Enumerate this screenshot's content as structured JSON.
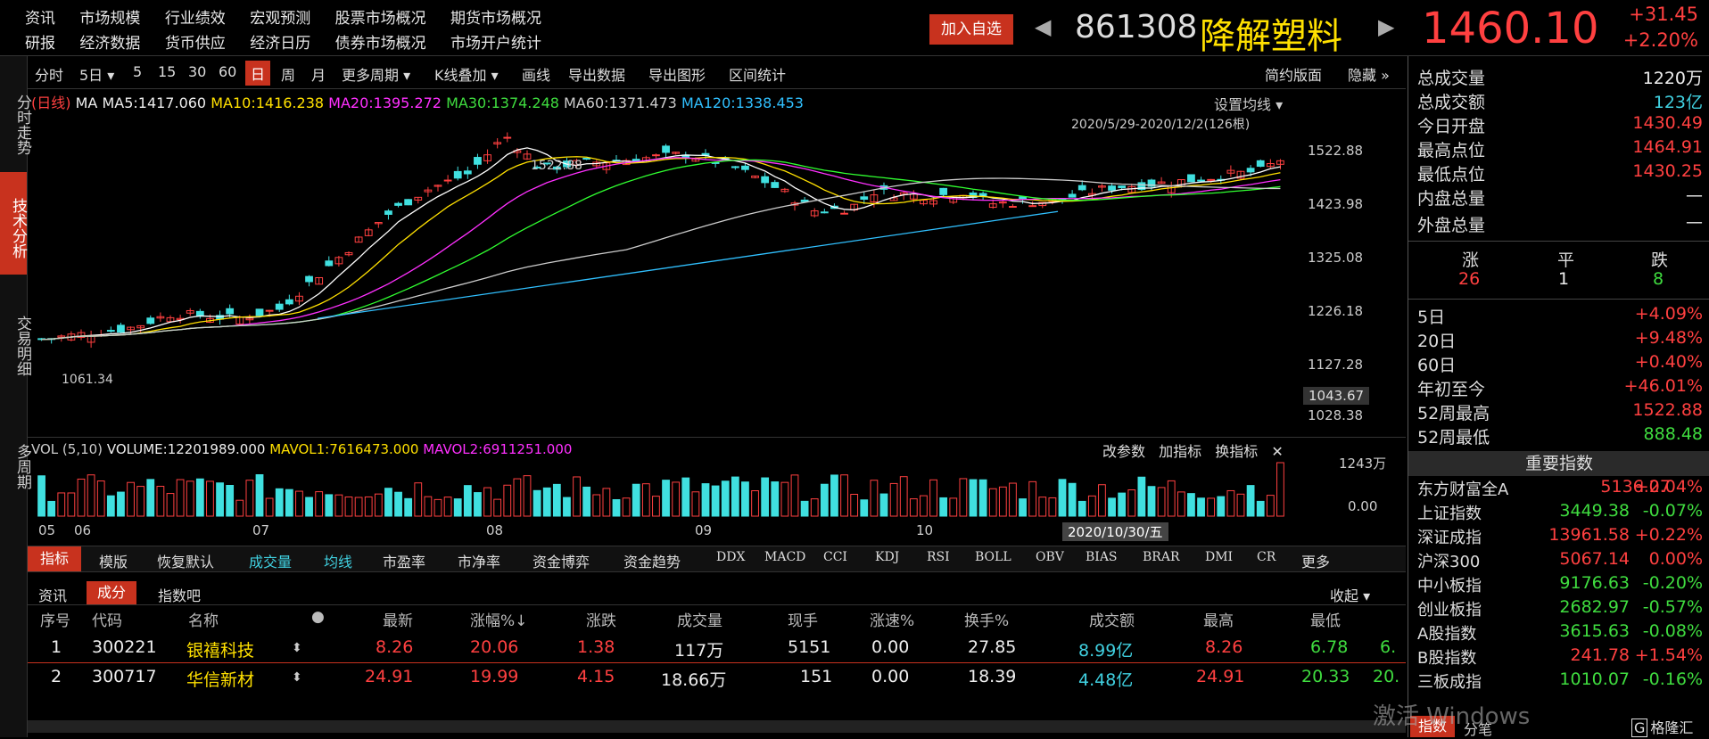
{
  "top_nav": {
    "row1": [
      "资讯",
      "市场规模",
      "行业绩效",
      "宏观预测",
      "股票市场概况",
      "期货市场概况"
    ],
    "row2": [
      "研报",
      "经济数据",
      "货币供应",
      "经济日历",
      "债券市场概况",
      "市场开户统计"
    ]
  },
  "header": {
    "add_watchlist": "加入自选",
    "prev_arrow": "◀",
    "next_arrow": "▶",
    "code": "861308",
    "name": "降解塑料",
    "price": "1460.10",
    "change": "+31.45",
    "change_pct": "+2.20%"
  },
  "left_tabs": [
    "分时走势",
    "技术分析",
    "交易明细",
    "多周期"
  ],
  "toolbar": {
    "items": [
      "分时",
      "5日 ▾",
      "5",
      "15",
      "30",
      "60",
      "日",
      "周",
      "月",
      "更多周期 ▾",
      "K线叠加 ▾",
      "画线",
      "导出数据",
      "导出图形",
      "区间统计"
    ],
    "right": [
      "简约版面",
      "隐藏 »"
    ]
  },
  "ma_row": {
    "period": "(日线)",
    "ma": "MA",
    "ma5": "MA5:1417.060",
    "ma10": "MA10:1416.238",
    "ma20": "MA20:1395.272",
    "ma30": "MA30:1374.248",
    "ma60": "MA60:1371.473",
    "ma120": "MA120:1338.453",
    "settings": "设置均线 ▾",
    "range": "2020/5/29-2020/12/2(126根)"
  },
  "price_axis": [
    "1522.88",
    "1423.98",
    "1325.08",
    "1226.18",
    "1127.28",
    "1028.38"
  ],
  "price_marker": "1043.67",
  "annotations": {
    "high": "1522.88",
    "low": "1061.34"
  },
  "vol_row": {
    "vol": "VOL (5,10)",
    "volume": "VOLUME:12201989.000",
    "mavol1": "MAVOL1:7616473.000",
    "mavol2": "MAVOL2:6911251.000",
    "btns": [
      "改参数",
      "加指标",
      "换指标",
      "✕"
    ]
  },
  "vol_axis": [
    "1243万",
    "0.00"
  ],
  "date_axis": [
    "05",
    "06",
    "07",
    "08",
    "09",
    "10"
  ],
  "date_tip": "2020/10/30/五",
  "indicator_tabs": [
    "指标",
    "模版",
    "恢复默认",
    "成交量",
    "均线",
    "市盈率",
    "市净率",
    "资金博弈",
    "资金趋势",
    "DDX",
    "MACD",
    "CCI",
    "KDJ",
    "RSI",
    "BOLL",
    "OBV",
    "BIAS",
    "BRAR",
    "DMI",
    "CR",
    "更多"
  ],
  "list_tabs": [
    "资讯",
    "成分",
    "指数吧"
  ],
  "collapse": "收起 ▾",
  "table": {
    "headers": [
      "序号",
      "代码",
      "名称",
      "最新",
      "涨幅%↓",
      "涨跌",
      "成交量",
      "现手",
      "涨速%",
      "换手%",
      "成交额",
      "最高",
      "最低"
    ],
    "rows": [
      [
        "1",
        "300221",
        "银禧科技",
        "8.26",
        "20.06",
        "1.38",
        "117万",
        "5151",
        "0.00",
        "27.85",
        "8.99亿",
        "8.26",
        "6.78",
        "6."
      ],
      [
        "2",
        "300717",
        "华信新材",
        "24.91",
        "19.99",
        "4.15",
        "18.66万",
        "151",
        "0.00",
        "18.39",
        "4.48亿",
        "24.91",
        "20.33",
        "20."
      ]
    ]
  },
  "right_stats": [
    {
      "label": "总成交量",
      "value": "1220万",
      "color": "white"
    },
    {
      "label": "总成交额",
      "value": "123亿",
      "color": "cyan"
    },
    {
      "label": "今日开盘",
      "value": "1430.49",
      "color": "red"
    },
    {
      "label": "最高点位",
      "value": "1464.91",
      "color": "red"
    },
    {
      "label": "最低点位",
      "value": "1430.25",
      "color": "red"
    },
    {
      "label": "内盘总量",
      "value": "—",
      "color": "white"
    },
    {
      "label": "外盘总量",
      "value": "—",
      "color": "white"
    }
  ],
  "breadth": {
    "labels": [
      "涨",
      "平",
      "跌"
    ],
    "values": [
      "26",
      "1",
      "8"
    ]
  },
  "periods": [
    {
      "label": "5日",
      "value": "+4.09%"
    },
    {
      "label": "20日",
      "value": "+9.48%"
    },
    {
      "label": "60日",
      "value": "+0.40%"
    },
    {
      "label": "年初至今",
      "value": "+46.01%"
    },
    {
      "label": "52周最高",
      "value": "1522.88"
    },
    {
      "label": "52周最低",
      "value": "888.48"
    }
  ],
  "indices_title": "重要指数",
  "indices": [
    {
      "name": "东方财富全A",
      "value": "5136.27",
      "chg": "+0.04%",
      "color": "red"
    },
    {
      "name": "上证指数",
      "value": "3449.38",
      "chg": "-0.07%",
      "color": "green"
    },
    {
      "name": "深证成指",
      "value": "13961.58",
      "chg": "+0.22%",
      "color": "red"
    },
    {
      "name": "沪深300",
      "value": "5067.14",
      "chg": "0.00%",
      "color": "red"
    },
    {
      "name": "中小板指",
      "value": "9176.63",
      "chg": "-0.20%",
      "color": "green"
    },
    {
      "name": "创业板指",
      "value": "2682.97",
      "chg": "-0.57%",
      "color": "green"
    },
    {
      "name": "A股指数",
      "value": "3615.63",
      "chg": "-0.08%",
      "color": "green"
    },
    {
      "name": "B股指数",
      "value": "241.78",
      "chg": "+1.54%",
      "color": "red"
    },
    {
      "name": "三板成指",
      "value": "1010.07",
      "chg": "-0.16%",
      "color": "green"
    }
  ],
  "bottom_tabs": [
    "指数",
    "分笔"
  ],
  "watermark": "激活 Windows",
  "logo_text": "格隆汇",
  "colors": {
    "up": "#ff4040",
    "down": "#40e0e0",
    "ma5": "#ffffff",
    "ma10": "#ffe000",
    "ma20": "#ff30ff",
    "ma30": "#30ff30",
    "ma60": "#cccccc",
    "ma120": "#30c0ff"
  }
}
